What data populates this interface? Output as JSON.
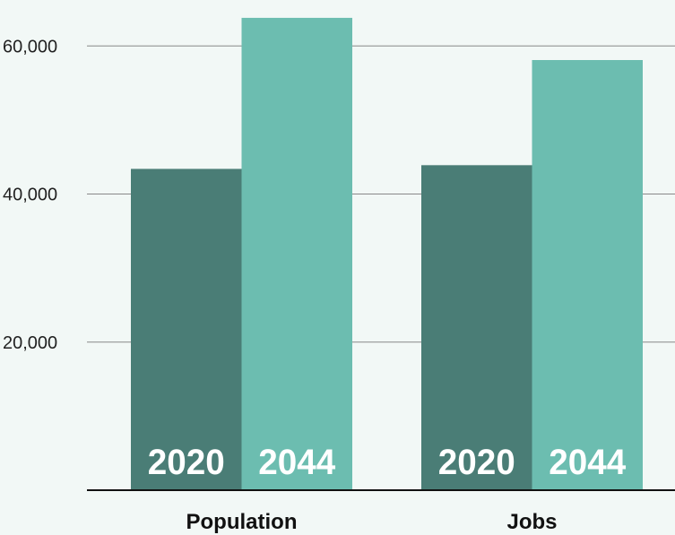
{
  "chart_data": {
    "type": "bar",
    "categories": [
      "Population",
      "Jobs"
    ],
    "series": [
      {
        "label": "2020",
        "values": [
          43400,
          43900
        ],
        "color": "#4a7d76"
      },
      {
        "label": "2044",
        "values": [
          63800,
          58100
        ],
        "color": "#6cbdb0"
      }
    ],
    "yticks": [
      {
        "value": 20000,
        "label": "20,000"
      },
      {
        "value": 40000,
        "label": "40,000"
      },
      {
        "value": 60000,
        "label": "60,000"
      }
    ],
    "ylim": [
      0,
      65000
    ],
    "grid": true,
    "legend": "none",
    "background": "#f2f8f6"
  }
}
